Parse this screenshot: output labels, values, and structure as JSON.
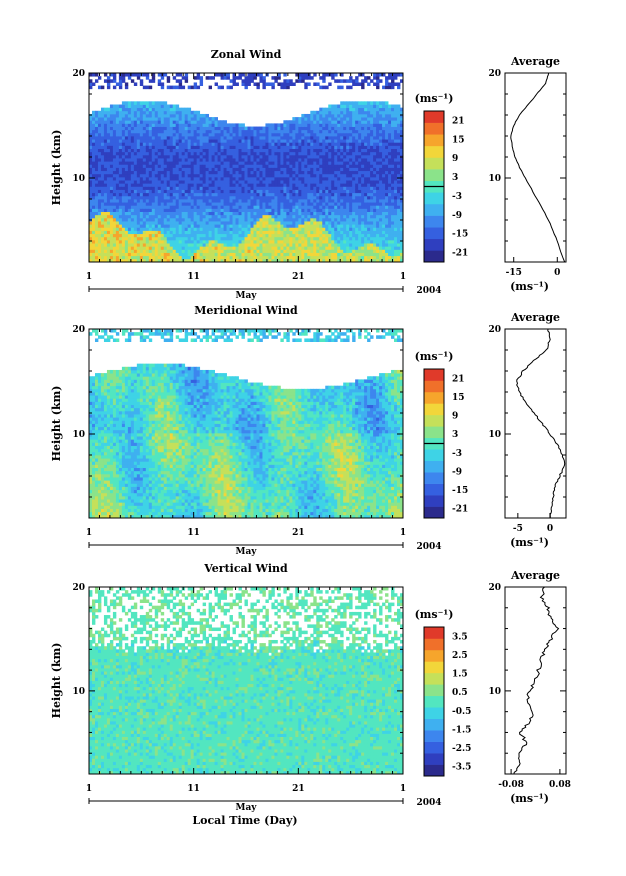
{
  "figure": {
    "xlabel": "Local Time (Day)"
  },
  "chart_data": [
    {
      "type": "heatmap",
      "title": "Zonal Wind",
      "ylabel": "Height (km)",
      "yticks": [
        "20",
        "10"
      ],
      "ylim": [
        2,
        20
      ],
      "xticks": [
        "1",
        "11",
        "21",
        "1"
      ],
      "x_day_values": [
        1,
        11,
        21,
        31
      ],
      "month_label": "May",
      "year_label": "2004",
      "colorbar": {
        "unit": "(ms⁻¹)",
        "ticks": [
          "21",
          "15",
          "9",
          "3",
          "-3",
          "-9",
          "-15",
          "-21"
        ],
        "tick_values": [
          21,
          15,
          9,
          3,
          -3,
          -9,
          -15,
          -21
        ],
        "range": [
          -24,
          24
        ],
        "zero_line": true
      },
      "field_pattern": "westerly (blue) aloft 6-16 km, weak easterly (yellow/orange) below 6 km, white gaps above 16 km",
      "average_profile": {
        "title": "Average",
        "xticks": [
          "-15",
          "0"
        ],
        "xtick_values": [
          -15,
          0
        ],
        "xlim": [
          -18,
          3
        ],
        "xlabel": "(ms⁻¹)",
        "yticks": [
          "20",
          "10"
        ],
        "height_km": [
          2,
          4,
          6,
          8,
          10,
          11,
          12,
          13,
          14,
          15,
          16,
          17,
          18,
          19,
          20
        ],
        "value": [
          2.5,
          0,
          -3,
          -7,
          -11,
          -13,
          -14.5,
          -15.5,
          -16,
          -15,
          -13,
          -10,
          -7,
          -4,
          -3
        ]
      }
    },
    {
      "type": "heatmap",
      "title": "Meridional Wind",
      "ylabel": "Height (km)",
      "yticks": [
        "20",
        "10"
      ],
      "ylim": [
        2,
        20
      ],
      "xticks": [
        "1",
        "11",
        "21",
        "1"
      ],
      "x_day_values": [
        1,
        11,
        21,
        31
      ],
      "month_label": "May",
      "year_label": "2004",
      "colorbar": {
        "unit": "(ms⁻¹)",
        "ticks": [
          "21",
          "15",
          "9",
          "3",
          "-3",
          "-9",
          "-15",
          "-21"
        ],
        "tick_values": [
          21,
          15,
          9,
          3,
          -3,
          -9,
          -15,
          -21
        ],
        "range": [
          -24,
          24
        ],
        "zero_line": true
      },
      "field_pattern": "mixed positive/negative meridional wind, northerly (green/yellow) bands, white gaps above 16 km",
      "average_profile": {
        "title": "Average",
        "xticks": [
          "-5",
          "0"
        ],
        "xtick_values": [
          -5,
          0
        ],
        "xlim": [
          -7,
          2.5
        ],
        "xlabel": "(ms⁻¹)",
        "yticks": [
          "20",
          "10"
        ],
        "height_km": [
          2,
          3,
          4,
          5,
          6,
          7,
          8,
          9,
          10,
          11,
          12,
          13,
          14,
          15,
          16,
          17,
          18,
          19,
          20
        ],
        "value": [
          0,
          0.3,
          0.5,
          0.8,
          1.5,
          2.3,
          2.0,
          1.2,
          0,
          -1.2,
          -2.5,
          -3.8,
          -4.8,
          -5.2,
          -4.2,
          -2.5,
          -0.5,
          0,
          -0.3
        ]
      }
    },
    {
      "type": "heatmap",
      "title": "Vertical Wind",
      "ylabel": "Height (km)",
      "yticks": [
        "20",
        "10"
      ],
      "ylim": [
        2,
        20
      ],
      "xticks": [
        "1",
        "11",
        "21",
        "1"
      ],
      "x_day_values": [
        1,
        11,
        21,
        31
      ],
      "month_label": "May",
      "year_label": "2004",
      "colorbar": {
        "unit": "(ms⁻¹)",
        "ticks": [
          "3.5",
          "2.5",
          "1.5",
          "0.5",
          "-0.5",
          "-1.5",
          "-2.5",
          "-3.5"
        ],
        "tick_values": [
          3.5,
          2.5,
          1.5,
          0.5,
          -0.5,
          -1.5,
          -2.5,
          -3.5
        ],
        "range": [
          -4,
          4
        ],
        "zero_line": false
      },
      "field_pattern": "near-zero vertical wind (cyan/green) throughout, white gaps above 14 km",
      "average_profile": {
        "title": "Average",
        "xticks": [
          "-0.08",
          "0.08"
        ],
        "xtick_values": [
          -0.08,
          0.08
        ],
        "xlim": [
          -0.1,
          0.1
        ],
        "xlabel": "(ms⁻¹)",
        "yticks": [
          "20",
          "10"
        ],
        "height_km": [
          2,
          3,
          4,
          5,
          6,
          7,
          8,
          9,
          10,
          11,
          12,
          13,
          14,
          15,
          16,
          17,
          18,
          19,
          20
        ],
        "value": [
          -0.07,
          -0.05,
          -0.06,
          -0.03,
          -0.05,
          -0.02,
          -0.01,
          -0.03,
          -0.02,
          0.0,
          0.01,
          0.02,
          0.03,
          0.05,
          0.07,
          0.05,
          0.04,
          0.02,
          0.03
        ]
      }
    }
  ]
}
